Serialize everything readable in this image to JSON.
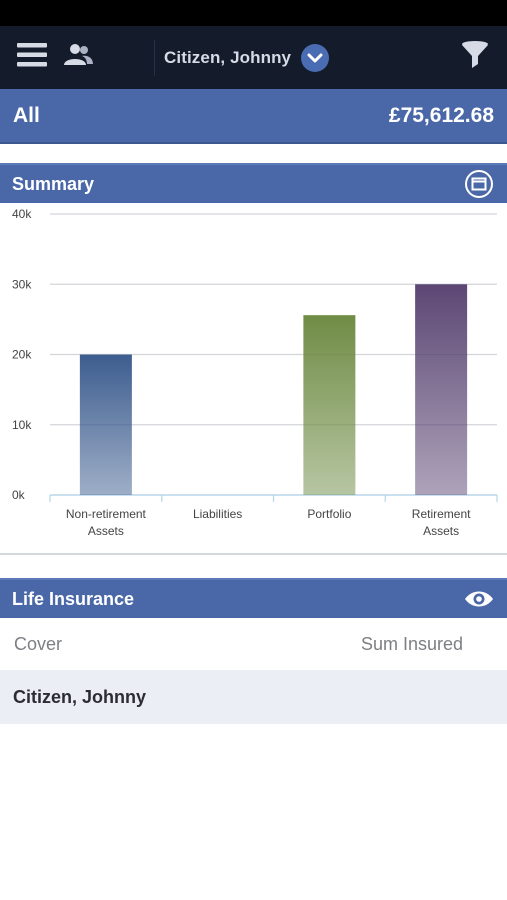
{
  "header": {
    "client_name": "Citizen, Johnny",
    "icons": [
      "menu-icon",
      "people-icon",
      "chevron-down-icon",
      "filter-icon"
    ]
  },
  "total": {
    "label": "All",
    "value": "£75,612.68"
  },
  "summary": {
    "title": "Summary",
    "icon": "minimize-icon"
  },
  "chart_data": {
    "type": "bar",
    "title": "",
    "xlabel": "",
    "ylabel": "",
    "ylim": [
      0,
      40000
    ],
    "yticks": [
      {
        "value": 0,
        "label": "0k"
      },
      {
        "value": 10000,
        "label": "10k"
      },
      {
        "value": 20000,
        "label": "20k"
      },
      {
        "value": 30000,
        "label": "30k"
      },
      {
        "value": 40000,
        "label": "40k"
      }
    ],
    "grid": true,
    "categories": [
      [
        "Non-retirement",
        "Assets"
      ],
      [
        "Liabilities"
      ],
      [
        "Portfolio"
      ],
      [
        "Retirement",
        "Assets"
      ]
    ],
    "values": [
      20000,
      0,
      25600,
      30000
    ],
    "colors": [
      "#3d5d8f",
      "#3d5d8f",
      "#6f8c45",
      "#5c4774"
    ]
  },
  "life_insurance": {
    "title": "Life Insurance",
    "icon": "eye-icon",
    "columns": [
      "Cover",
      "Sum Insured"
    ],
    "rows": [
      {
        "name": "Citizen, Johnny"
      }
    ]
  },
  "colors": {
    "nav_background": "#141b2b",
    "accent_blue": "#4a68a8",
    "row_background": "#ebeef5"
  }
}
